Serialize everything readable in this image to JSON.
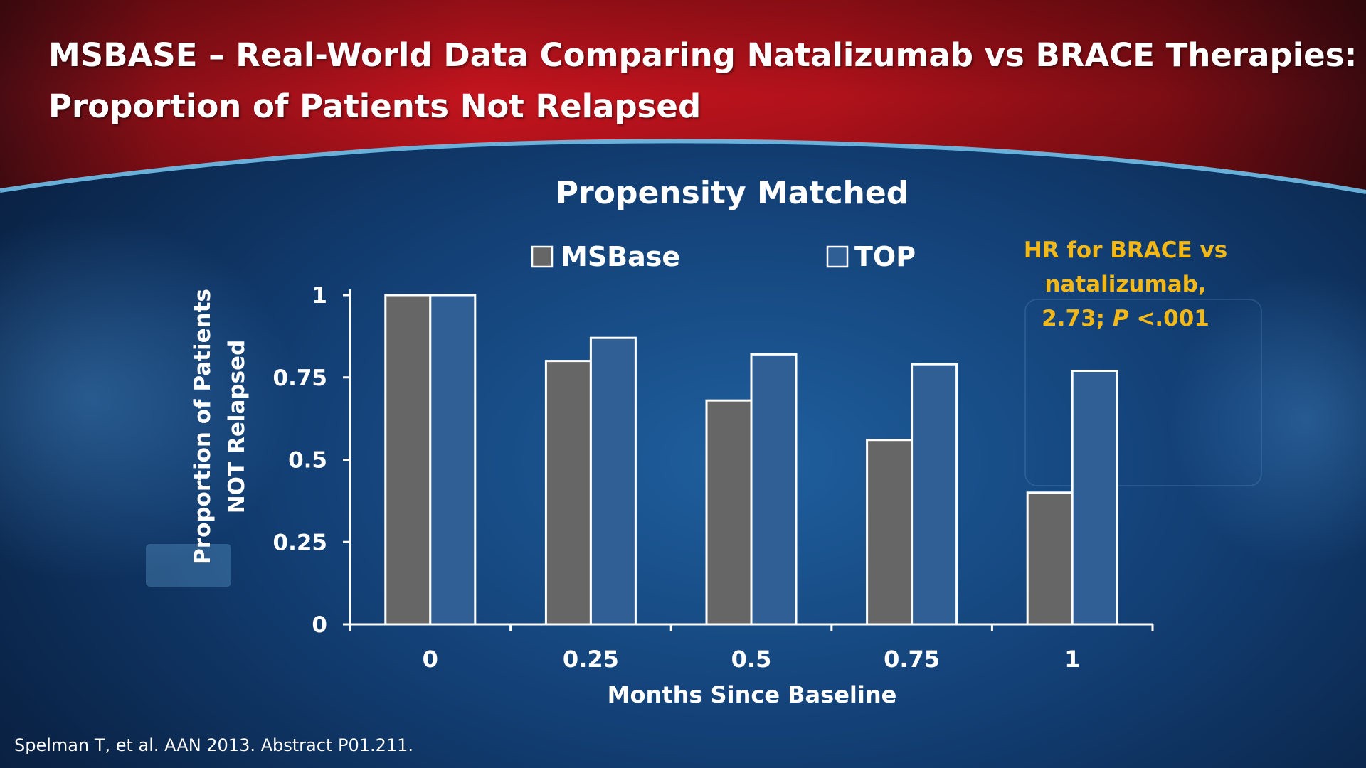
{
  "slide": {
    "title_lines": [
      "MSBASE – Real-World Data Comparing Natalizumab vs BRACE Therapies:",
      "Proportion of Patients Not Relapsed"
    ],
    "footnote": "Spelman T, et al. AAN 2013. Abstract P01.211."
  },
  "annotation": {
    "lines": [
      "HR for BRACE vs",
      "natalizumab,"
    ],
    "line3_prefix": "2.73; ",
    "line3_italic": "P",
    "line3_suffix": " <.001",
    "color": "#f2b817"
  },
  "chart_data": {
    "type": "bar",
    "title": "Propensity Matched",
    "xlabel": "Months Since Baseline",
    "ylabel_lines": [
      "Proportion of Patients",
      "NOT Relapsed"
    ],
    "categories": [
      "0",
      "0.25",
      "0.5",
      "0.75",
      "1"
    ],
    "yticks": [
      "0",
      "0.25",
      "0.5",
      "0.75",
      "1"
    ],
    "ylim": [
      0,
      1
    ],
    "series": [
      {
        "name": "MSBase",
        "color": "#666666",
        "values": [
          1.0,
          0.8,
          0.68,
          0.56,
          0.4
        ]
      },
      {
        "name": "TOP",
        "color": "#2f5f95",
        "values": [
          1.0,
          0.87,
          0.82,
          0.79,
          0.77
        ]
      }
    ],
    "legend": "top",
    "grid": false
  }
}
